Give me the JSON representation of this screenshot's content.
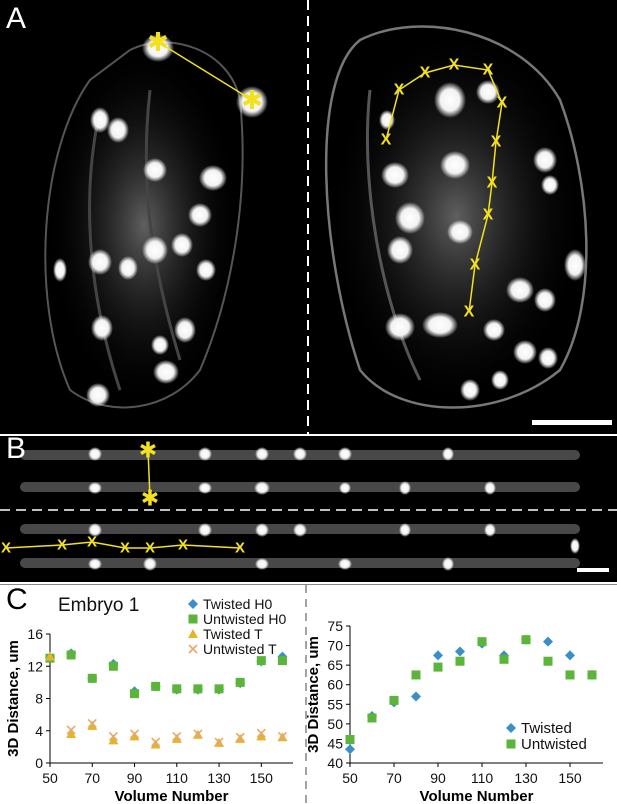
{
  "panels": {
    "a": {
      "label": "A"
    },
    "b": {
      "label": "B"
    },
    "c": {
      "label": "C",
      "title": "Embryo 1"
    }
  },
  "marker_glyphs": {
    "star": "✱",
    "x": "X"
  },
  "colors": {
    "twisted_h0": "#3a8fc9",
    "untwisted_h0": "#5bb53a",
    "twisted_t": "#e3b52a",
    "untwisted_t": "#e8a86a",
    "tracking_overlay": "#f2e021",
    "scale_bar": "#ffffff",
    "background_micrograph": "#000000"
  },
  "chart_data": [
    {
      "type": "scatter",
      "title": "",
      "xlabel": "Volume Number",
      "ylabel": "3D Distance, um",
      "xlim": [
        50,
        165
      ],
      "ylim": [
        0,
        16
      ],
      "xticks": [
        50,
        70,
        90,
        110,
        130,
        150
      ],
      "yticks": [
        0,
        4,
        8,
        12,
        16
      ],
      "legend_position": "top-left",
      "series": [
        {
          "name": "Twisted H0",
          "marker": "diamond",
          "color": "#3a8fc9",
          "x": [
            50,
            60,
            70,
            80,
            90,
            100,
            110,
            120,
            130,
            140,
            150,
            160
          ],
          "y": [
            13.1,
            13.6,
            10.5,
            12.3,
            8.9,
            9.5,
            9.1,
            9.1,
            9.1,
            9.9,
            12.6,
            13.2
          ]
        },
        {
          "name": "Untwisted H0",
          "marker": "square",
          "color": "#5bb53a",
          "x": [
            50,
            60,
            70,
            80,
            90,
            100,
            110,
            120,
            130,
            140,
            150,
            160
          ],
          "y": [
            13.0,
            13.4,
            10.5,
            12.0,
            8.6,
            9.5,
            9.2,
            9.2,
            9.2,
            10.0,
            12.7,
            12.7
          ]
        },
        {
          "name": "Twisted T",
          "marker": "triangle",
          "color": "#e3b52a",
          "x": [
            50,
            60,
            70,
            80,
            90,
            100,
            110,
            120,
            130,
            140,
            150,
            160
          ],
          "y": [
            13.2,
            3.6,
            4.6,
            2.8,
            3.3,
            2.3,
            3.0,
            3.5,
            2.5,
            3.0,
            3.3,
            3.2
          ]
        },
        {
          "name": "Untwisted T",
          "marker": "x",
          "color": "#e8a86a",
          "x": [
            60,
            70,
            80,
            90,
            100,
            110,
            120,
            130,
            140,
            150,
            160
          ],
          "y": [
            4.1,
            4.9,
            3.3,
            3.6,
            2.6,
            3.3,
            3.6,
            2.6,
            3.2,
            3.7,
            3.3
          ]
        }
      ]
    },
    {
      "type": "scatter",
      "title": "",
      "xlabel": "Volume Number",
      "ylabel": "3D Distance, um",
      "xlim": [
        50,
        165
      ],
      "ylim": [
        40,
        75
      ],
      "xticks": [
        50,
        70,
        90,
        110,
        130,
        150
      ],
      "yticks": [
        40,
        45,
        50,
        55,
        60,
        65,
        70,
        75
      ],
      "legend_position": "bottom-right",
      "series": [
        {
          "name": "Twisted",
          "marker": "diamond",
          "color": "#3a8fc9",
          "x": [
            50,
            60,
            70,
            80,
            90,
            100,
            110,
            120,
            130,
            140,
            150,
            160
          ],
          "y": [
            43.5,
            52.0,
            55.5,
            57.0,
            67.5,
            68.5,
            70.5,
            67.5,
            71.5,
            71.0,
            67.5,
            62.5
          ]
        },
        {
          "name": "Untwisted",
          "marker": "square",
          "color": "#5bb53a",
          "x": [
            50,
            60,
            70,
            80,
            90,
            100,
            110,
            120,
            130,
            140,
            150,
            160
          ],
          "y": [
            46.0,
            51.5,
            56.0,
            62.5,
            64.5,
            66.0,
            71.0,
            66.5,
            71.5,
            66.0,
            62.5,
            62.5
          ]
        }
      ]
    }
  ]
}
